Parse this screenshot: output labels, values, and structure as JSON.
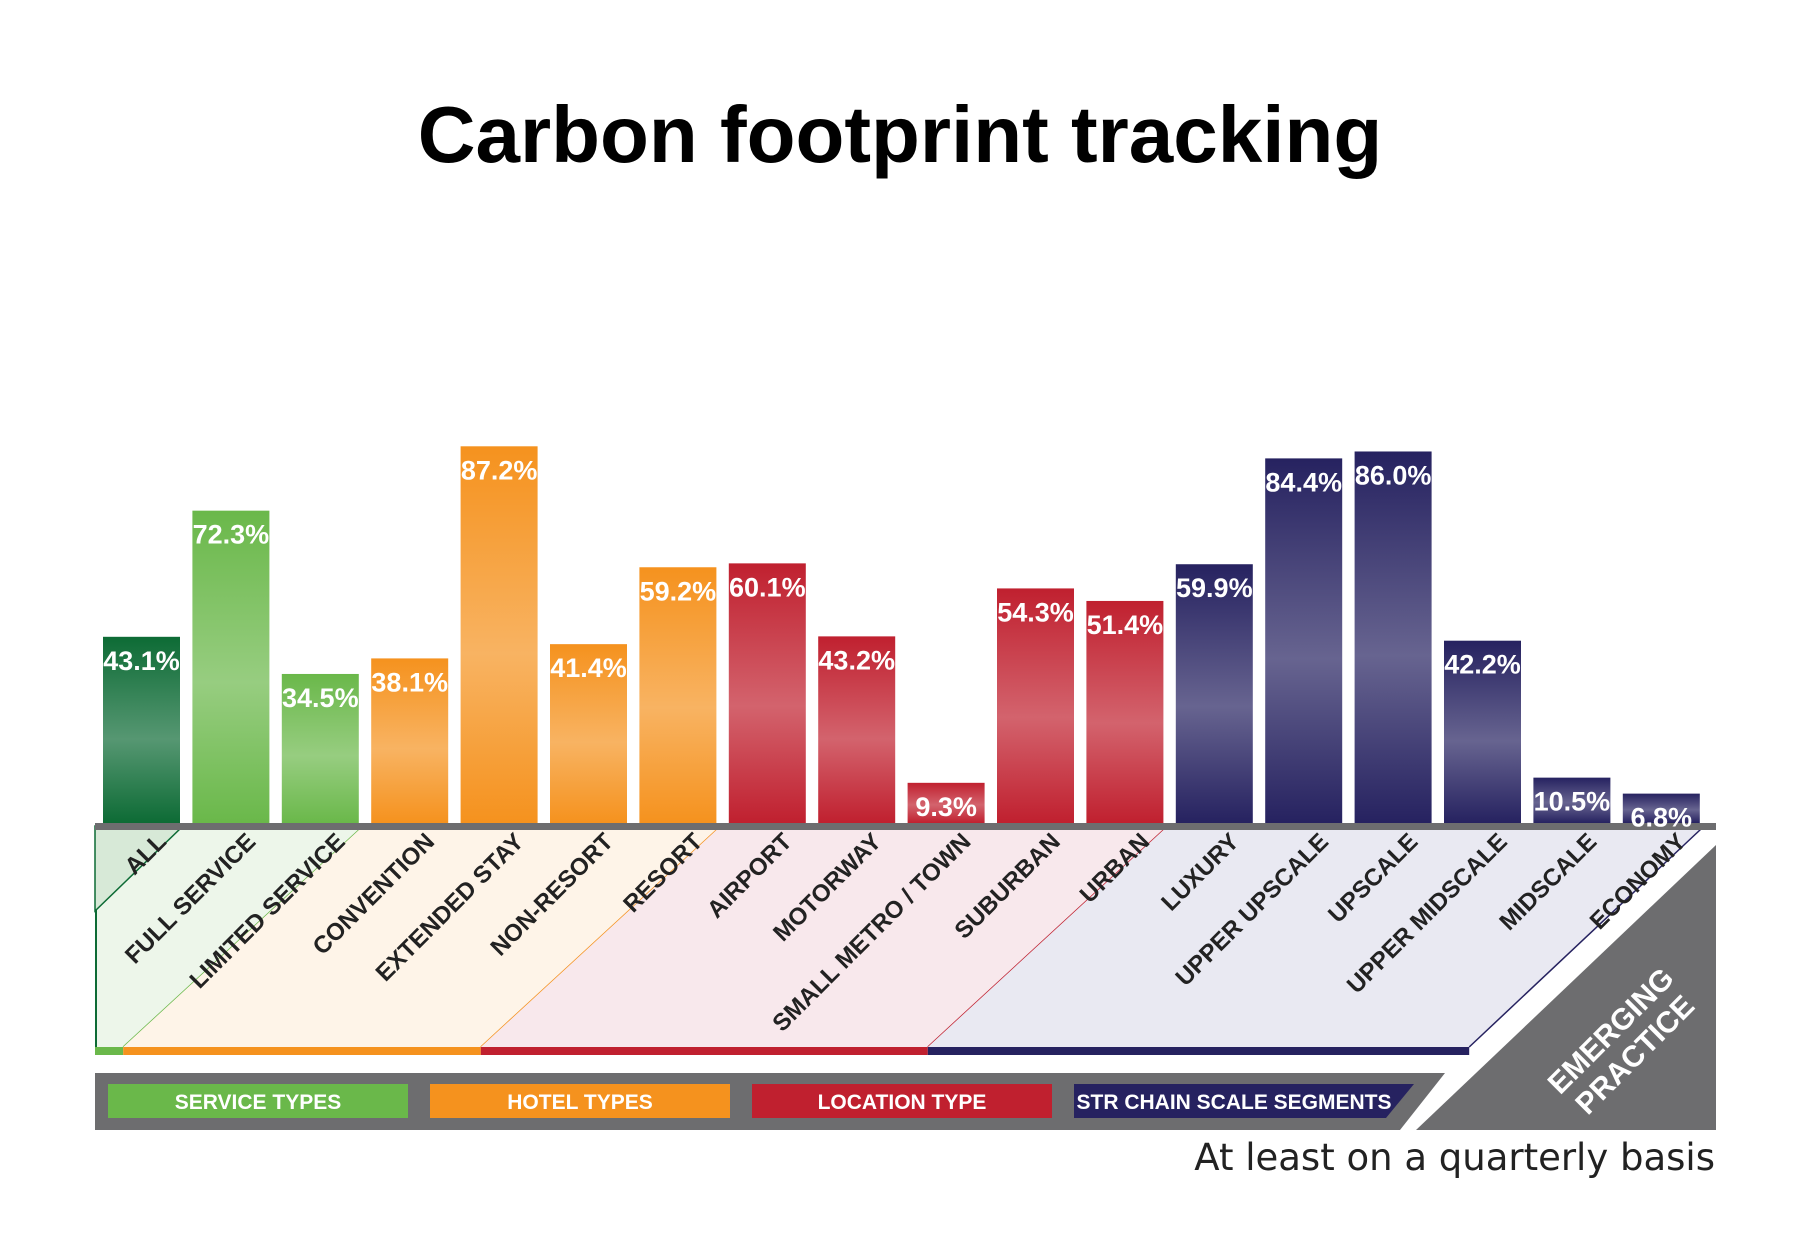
{
  "chart_data": {
    "type": "bar",
    "title": "Carbon footprint tracking",
    "note": "At least on a quarterly basis",
    "ylim": [
      0,
      100
    ],
    "categories": [
      "ALL",
      "FULL SERVICE",
      "LIMITED SERVICE",
      "CONVENTION",
      "EXTENDED STAY",
      "NON-RESORT",
      "RESORT",
      "AIRPORT",
      "MOTORWAY",
      "SMALL METRO / TOWN",
      "SUBURBAN",
      "URBAN",
      "LUXURY",
      "UPPER UPSCALE",
      "UPSCALE",
      "UPPER MIDSCALE",
      "MIDSCALE",
      "ECONOMY"
    ],
    "values": [
      43.1,
      72.3,
      34.5,
      38.1,
      87.2,
      41.4,
      59.2,
      60.1,
      43.2,
      9.3,
      54.3,
      51.4,
      59.9,
      84.4,
      86.0,
      42.2,
      10.5,
      6.8
    ],
    "value_labels": [
      "43.1%",
      "72.3%",
      "34.5%",
      "38.1%",
      "87.2%",
      "41.4%",
      "59.2%",
      "60.1%",
      "43.2%",
      "9.3%",
      "54.3%",
      "51.4%",
      "59.9%",
      "84.4%",
      "86.0%",
      "42.2%",
      "10.5%",
      "6.8%"
    ],
    "groups": [
      {
        "name": "SERVICE TYPES",
        "color": "#6ab84a",
        "categories": [
          "ALL",
          "FULL SERVICE",
          "LIMITED SERVICE"
        ]
      },
      {
        "name": "HOTEL TYPES",
        "color": "#f5921e",
        "categories": [
          "CONVENTION",
          "EXTENDED STAY",
          "NON-RESORT",
          "RESORT"
        ]
      },
      {
        "name": "LOCATION TYPE",
        "color": "#c0202f",
        "categories": [
          "AIRPORT",
          "MOTORWAY",
          "SMALL METRO / TOWN",
          "SUBURBAN",
          "URBAN"
        ]
      },
      {
        "name": "STR CHAIN SCALE SEGMENTS",
        "color": "#262260",
        "categories": [
          "LUXURY",
          "UPPER UPSCALE",
          "UPSCALE",
          "UPPER MIDSCALE",
          "MIDSCALE",
          "ECONOMY"
        ]
      }
    ],
    "highlight": {
      "category": "ALL",
      "color": "#0d6b35"
    },
    "corner_label": [
      "EMERGING",
      "PRACTICE"
    ]
  }
}
